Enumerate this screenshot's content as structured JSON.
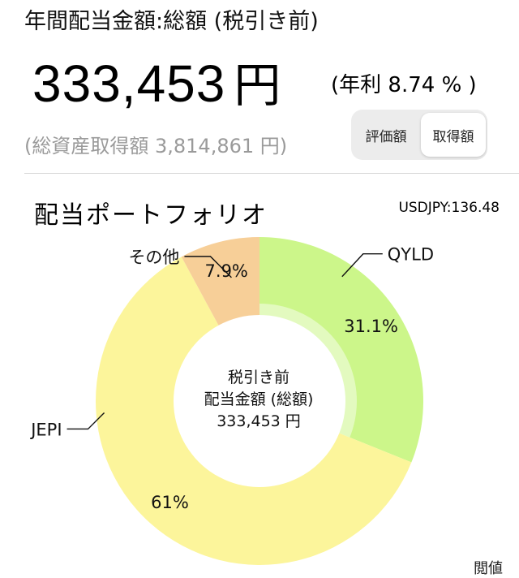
{
  "header": {
    "title": "年間配当金額:総額 (税引き前)",
    "amount": "333,453",
    "amount_unit": "円",
    "annual_rate": "(年利 8.74 % )",
    "total_assets": "(総資産取得額 3,814,861 円)"
  },
  "toggle": {
    "options": [
      "評価額",
      "取得額"
    ],
    "selected": "取得額"
  },
  "portfolio": {
    "title": "配当ポートフォリオ",
    "rate": "USDJPY:136.48",
    "center_lines": [
      "税引き前",
      "配当金額 (総額)",
      "333,453 円"
    ]
  },
  "chart_data": {
    "type": "pie",
    "donut": true,
    "categories": [
      "QYLD",
      "JEPI",
      "その他"
    ],
    "values": [
      31.1,
      61,
      7.9
    ],
    "value_labels": [
      "31.1%",
      "61%",
      "7.9%"
    ],
    "colors": [
      "#ccf68a",
      "#fcf59b",
      "#f7cf98"
    ]
  },
  "footer": {
    "cut_text": "閲値"
  }
}
